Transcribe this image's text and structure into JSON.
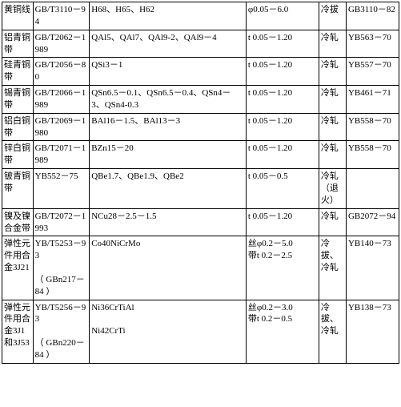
{
  "columns": [
    "c0",
    "c1",
    "c2",
    "c3",
    "c4",
    "c5"
  ],
  "rows": [
    [
      "黄铜线",
      "GB/T3110－94",
      "H68、H65、H62",
      "φ0.05－6.0",
      "冷拔",
      "GB3110－82"
    ],
    [
      "铝青铜带",
      "GB/T2062－1989",
      "QAl5、QAl7、QAl9-2、QAl9－4",
      "t 0.05－1.20",
      "冷轧",
      "YB563－70"
    ],
    [
      "硅青铜带",
      "GB/T2056－80",
      "QSi3－1",
      "t 0.05－1.20",
      "冷轧",
      "YB557－70"
    ],
    [
      "锡青铜带",
      "GB/T2066－1989",
      "QSn6.5－0.1、QSn6.5－0.4、QSn4－3、QSn4-0.3",
      "t 0.05－1.20",
      "冷轧",
      "YB461－71"
    ],
    [
      "铝白铜带",
      "GB/T2069－1980",
      "BAl16－1.5、BAl13－3",
      "t 0.05－1.20",
      "冷轧",
      "YB558－70"
    ],
    [
      "锌白铜带",
      "GB/T2071－1989",
      "BZn15－20",
      "t 0.05－1.20",
      "冷轧",
      "YB558－70"
    ],
    [
      "铍青铜带",
      "YB552－75",
      "QBe1.7、QBe1.9、QBe2",
      "t 0.05－0.5",
      "冷轧（退火）",
      ""
    ],
    [
      "镍及镍合金带",
      "GB/T2072－1993",
      "NCu28－2.5－1.5",
      "t 0.05－1.20",
      "冷轧",
      "GB2072－94"
    ],
    [
      "弹性元件用合金3J21",
      "YB/T5253－93\n\n（ GBn217－84 ）",
      "Co40NiCrMo",
      "丝φ0.2－5.0\n带t 0.2－2.5",
      "冷拔、冷轧",
      "YB140－73"
    ],
    [
      "弹性元件用合金3J1和3J53",
      "YB/T5256－93\n\n（ GBn220－84 ）",
      "Ni36CrTiAl\n\nNi42CrTi",
      "丝φ0.2－3.0\n带t 0.2－0.5",
      "冷拔、冷轧",
      "YB138－73"
    ]
  ]
}
